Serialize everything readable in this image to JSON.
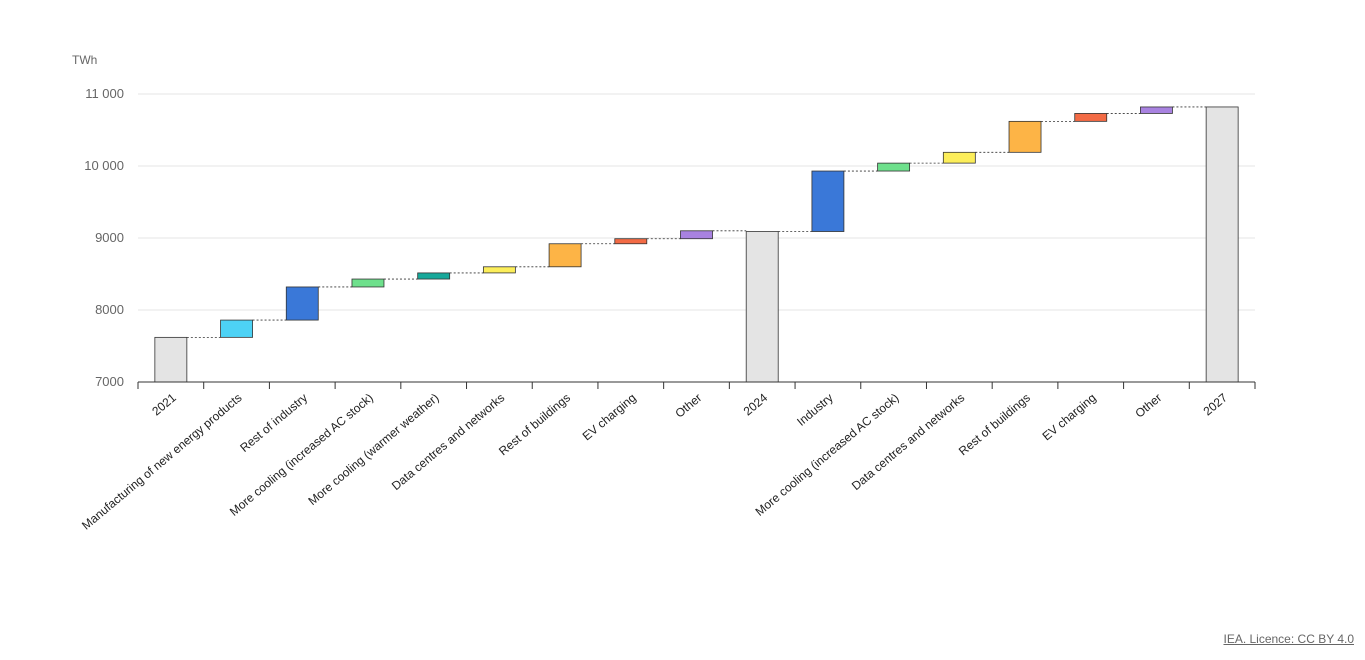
{
  "chart_data": {
    "type": "bar",
    "subtype": "waterfall",
    "unit_label": "TWh",
    "ylim": [
      7000,
      11000
    ],
    "yticks": [
      "7000",
      "8000",
      "9000",
      "10 000",
      "11 000"
    ],
    "ytick_values": [
      7000,
      8000,
      9000,
      10000,
      11000
    ],
    "grid": true,
    "steps": [
      {
        "label": "2021",
        "kind": "total",
        "value": 7620,
        "color": "#e4e4e4"
      },
      {
        "label": "Manufacturing of new energy products",
        "kind": "delta",
        "value": 240,
        "color": "#4dd2f5"
      },
      {
        "label": "Rest of industry",
        "kind": "delta",
        "value": 460,
        "color": "#3a78d8"
      },
      {
        "label": "More cooling (increased AC stock)",
        "kind": "delta",
        "value": 110,
        "color": "#6ee08c"
      },
      {
        "label": "More cooling (warmer weather)",
        "kind": "delta",
        "value": 85,
        "color": "#17a89a"
      },
      {
        "label": "Data centres and networks",
        "kind": "delta",
        "value": 85,
        "color": "#fcee5a"
      },
      {
        "label": "Rest of buildings",
        "kind": "delta",
        "value": 320,
        "color": "#fdb446"
      },
      {
        "label": "EV charging",
        "kind": "delta",
        "value": 70,
        "color": "#f36b45"
      },
      {
        "label": "Other",
        "kind": "delta",
        "value": 110,
        "color": "#a882e0"
      },
      {
        "label": "2024",
        "kind": "total",
        "value": 9090,
        "color": "#e4e4e4"
      },
      {
        "label": "Industry",
        "kind": "delta",
        "value": 840,
        "color": "#3a78d8"
      },
      {
        "label": "More cooling (increased AC stock)",
        "kind": "delta",
        "value": 110,
        "color": "#6ee08c"
      },
      {
        "label": "Data centres and networks",
        "kind": "delta",
        "value": 150,
        "color": "#fcee5a"
      },
      {
        "label": "Rest of buildings",
        "kind": "delta",
        "value": 430,
        "color": "#fdb446"
      },
      {
        "label": "EV charging",
        "kind": "delta",
        "value": 110,
        "color": "#f36b45"
      },
      {
        "label": "Other",
        "kind": "delta",
        "value": 90,
        "color": "#a882e0"
      },
      {
        "label": "2027",
        "kind": "total",
        "value": 10820,
        "color": "#e4e4e4"
      }
    ]
  },
  "footer": {
    "licence": "IEA. Licence: CC BY 4.0"
  }
}
